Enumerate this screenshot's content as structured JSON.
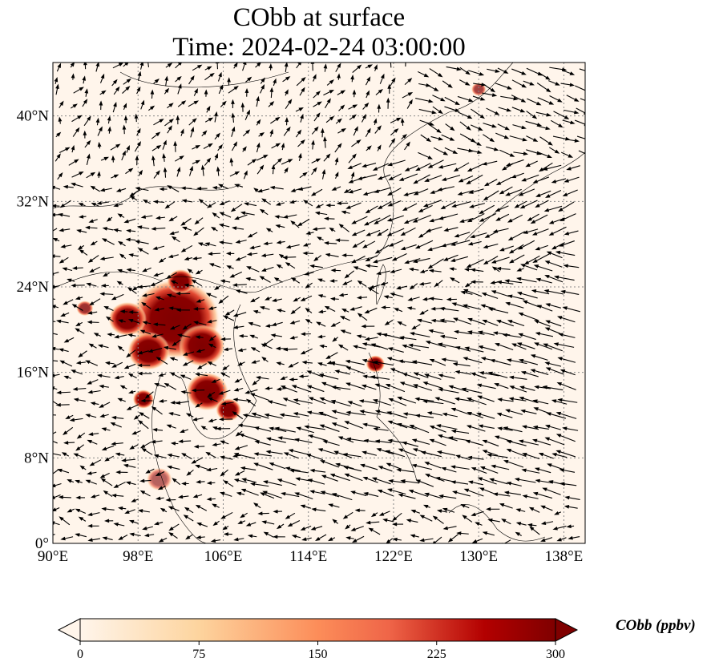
{
  "title_line1": "CObb at surface",
  "title_line2": "Time: 2024-02-24 03:00:00",
  "map": {
    "lon_range": [
      90,
      140
    ],
    "lat_range": [
      0,
      45
    ],
    "x_ticks": [
      "90°E",
      "98°E",
      "106°E",
      "114°E",
      "122°E",
      "130°E",
      "138°E"
    ],
    "x_tick_values": [
      90,
      98,
      106,
      114,
      122,
      130,
      138
    ],
    "y_ticks": [
      "0°",
      "8°N",
      "16°N",
      "24°N",
      "32°N",
      "40°N"
    ],
    "y_tick_values": [
      0,
      8,
      16,
      24,
      32,
      40
    ],
    "hotspots": [
      {
        "lon": 101.5,
        "lat": 21,
        "value": 300,
        "r": 4.2
      },
      {
        "lon": 97,
        "lat": 21,
        "value": 300,
        "r": 1.8
      },
      {
        "lon": 99,
        "lat": 18,
        "value": 300,
        "r": 2.0
      },
      {
        "lon": 104,
        "lat": 18.5,
        "value": 300,
        "r": 2.2
      },
      {
        "lon": 104.5,
        "lat": 14.2,
        "value": 300,
        "r": 2.0
      },
      {
        "lon": 106.5,
        "lat": 12.5,
        "value": 280,
        "r": 1.2
      },
      {
        "lon": 98.5,
        "lat": 13.5,
        "value": 260,
        "r": 1.0
      },
      {
        "lon": 102,
        "lat": 24.5,
        "value": 260,
        "r": 1.3
      },
      {
        "lon": 120.3,
        "lat": 16.8,
        "value": 260,
        "r": 0.9
      },
      {
        "lon": 93,
        "lat": 22,
        "value": 180,
        "r": 0.8
      },
      {
        "lon": 130,
        "lat": 42.5,
        "value": 160,
        "r": 0.7
      },
      {
        "lon": 100,
        "lat": 6,
        "value": 120,
        "r": 1.2
      }
    ]
  },
  "colorbar": {
    "label": "CObb (ppbv)",
    "ticks": [
      "0",
      "75",
      "150",
      "225",
      "300"
    ],
    "range": [
      0,
      300
    ],
    "colors": [
      "#fff5eb",
      "#fdd49e",
      "#fc8d59",
      "#ef6548",
      "#b30000",
      "#7f0000"
    ]
  }
}
